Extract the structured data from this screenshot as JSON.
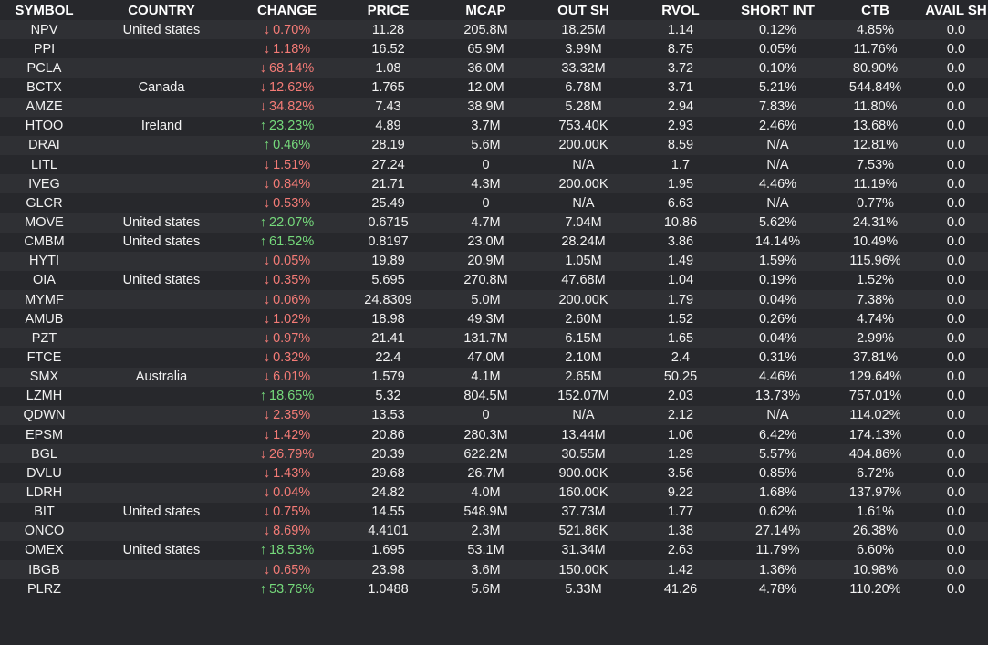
{
  "columns": [
    "SYMBOL",
    "COUNTRY",
    "CHANGE",
    "PRICE",
    "MCAP",
    "OUT SH",
    "RVOL",
    "SHORT INT",
    "CTB",
    "AVAIL SH"
  ],
  "colors": {
    "background": "#27282c",
    "row_alt": "#2f3034",
    "down": "#f47b76",
    "up": "#75d97b"
  },
  "icons": {
    "up": "arrow-up-icon",
    "down": "arrow-down-icon"
  },
  "rows": [
    {
      "symbol": "NPV",
      "country": "United states",
      "dir": "down",
      "arrow": "↓",
      "change": "0.70%",
      "price": "11.28",
      "mcap": "205.8M",
      "out_sh": "18.25M",
      "rvol": "1.14",
      "short_int": "0.12%",
      "ctb": "4.85%",
      "avail_sh": "0.0"
    },
    {
      "symbol": "PPI",
      "country": "",
      "dir": "down",
      "arrow": "↓",
      "change": "1.18%",
      "price": "16.52",
      "mcap": "65.9M",
      "out_sh": "3.99M",
      "rvol": "8.75",
      "short_int": "0.05%",
      "ctb": "11.76%",
      "avail_sh": "0.0"
    },
    {
      "symbol": "PCLA",
      "country": "",
      "dir": "down",
      "arrow": "↓",
      "change": "68.14%",
      "price": "1.08",
      "mcap": "36.0M",
      "out_sh": "33.32M",
      "rvol": "3.72",
      "short_int": "0.10%",
      "ctb": "80.90%",
      "avail_sh": "0.0"
    },
    {
      "symbol": "BCTX",
      "country": "Canada",
      "dir": "down",
      "arrow": "↓",
      "change": "12.62%",
      "price": "1.765",
      "mcap": "12.0M",
      "out_sh": "6.78M",
      "rvol": "3.71",
      "short_int": "5.21%",
      "ctb": "544.84%",
      "avail_sh": "0.0"
    },
    {
      "symbol": "AMZE",
      "country": "",
      "dir": "down",
      "arrow": "↓",
      "change": "34.82%",
      "price": "7.43",
      "mcap": "38.9M",
      "out_sh": "5.28M",
      "rvol": "2.94",
      "short_int": "7.83%",
      "ctb": "11.80%",
      "avail_sh": "0.0"
    },
    {
      "symbol": "HTOO",
      "country": "Ireland",
      "dir": "up",
      "arrow": "↑",
      "change": "23.23%",
      "price": "4.89",
      "mcap": "3.7M",
      "out_sh": "753.40K",
      "rvol": "2.93",
      "short_int": "2.46%",
      "ctb": "13.68%",
      "avail_sh": "0.0"
    },
    {
      "symbol": "DRAI",
      "country": "",
      "dir": "up",
      "arrow": "↑",
      "change": "0.46%",
      "price": "28.19",
      "mcap": "5.6M",
      "out_sh": "200.00K",
      "rvol": "8.59",
      "short_int": "N/A",
      "ctb": "12.81%",
      "avail_sh": "0.0"
    },
    {
      "symbol": "LITL",
      "country": "",
      "dir": "down",
      "arrow": "↓",
      "change": "1.51%",
      "price": "27.24",
      "mcap": "0",
      "out_sh": "N/A",
      "rvol": "1.7",
      "short_int": "N/A",
      "ctb": "7.53%",
      "avail_sh": "0.0"
    },
    {
      "symbol": "IVEG",
      "country": "",
      "dir": "down",
      "arrow": "↓",
      "change": "0.84%",
      "price": "21.71",
      "mcap": "4.3M",
      "out_sh": "200.00K",
      "rvol": "1.95",
      "short_int": "4.46%",
      "ctb": "11.19%",
      "avail_sh": "0.0"
    },
    {
      "symbol": "GLCR",
      "country": "",
      "dir": "down",
      "arrow": "↓",
      "change": "0.53%",
      "price": "25.49",
      "mcap": "0",
      "out_sh": "N/A",
      "rvol": "6.63",
      "short_int": "N/A",
      "ctb": "0.77%",
      "avail_sh": "0.0"
    },
    {
      "symbol": "MOVE",
      "country": "United states",
      "dir": "up",
      "arrow": "↑",
      "change": "22.07%",
      "price": "0.6715",
      "mcap": "4.7M",
      "out_sh": "7.04M",
      "rvol": "10.86",
      "short_int": "5.62%",
      "ctb": "24.31%",
      "avail_sh": "0.0"
    },
    {
      "symbol": "CMBM",
      "country": "United states",
      "dir": "up",
      "arrow": "↑",
      "change": "61.52%",
      "price": "0.8197",
      "mcap": "23.0M",
      "out_sh": "28.24M",
      "rvol": "3.86",
      "short_int": "14.14%",
      "ctb": "10.49%",
      "avail_sh": "0.0"
    },
    {
      "symbol": "HYTI",
      "country": "",
      "dir": "down",
      "arrow": "↓",
      "change": "0.05%",
      "price": "19.89",
      "mcap": "20.9M",
      "out_sh": "1.05M",
      "rvol": "1.49",
      "short_int": "1.59%",
      "ctb": "115.96%",
      "avail_sh": "0.0"
    },
    {
      "symbol": "OIA",
      "country": "United states",
      "dir": "down",
      "arrow": "↓",
      "change": "0.35%",
      "price": "5.695",
      "mcap": "270.8M",
      "out_sh": "47.68M",
      "rvol": "1.04",
      "short_int": "0.19%",
      "ctb": "1.52%",
      "avail_sh": "0.0"
    },
    {
      "symbol": "MYMF",
      "country": "",
      "dir": "down",
      "arrow": "↓",
      "change": "0.06%",
      "price": "24.8309",
      "mcap": "5.0M",
      "out_sh": "200.00K",
      "rvol": "1.79",
      "short_int": "0.04%",
      "ctb": "7.38%",
      "avail_sh": "0.0"
    },
    {
      "symbol": "AMUB",
      "country": "",
      "dir": "down",
      "arrow": "↓",
      "change": "1.02%",
      "price": "18.98",
      "mcap": "49.3M",
      "out_sh": "2.60M",
      "rvol": "1.52",
      "short_int": "0.26%",
      "ctb": "4.74%",
      "avail_sh": "0.0"
    },
    {
      "symbol": "PZT",
      "country": "",
      "dir": "down",
      "arrow": "↓",
      "change": "0.97%",
      "price": "21.41",
      "mcap": "131.7M",
      "out_sh": "6.15M",
      "rvol": "1.65",
      "short_int": "0.04%",
      "ctb": "2.99%",
      "avail_sh": "0.0"
    },
    {
      "symbol": "FTCE",
      "country": "",
      "dir": "down",
      "arrow": "↓",
      "change": "0.32%",
      "price": "22.4",
      "mcap": "47.0M",
      "out_sh": "2.10M",
      "rvol": "2.4",
      "short_int": "0.31%",
      "ctb": "37.81%",
      "avail_sh": "0.0"
    },
    {
      "symbol": "SMX",
      "country": "Australia",
      "dir": "down",
      "arrow": "↓",
      "change": "6.01%",
      "price": "1.579",
      "mcap": "4.1M",
      "out_sh": "2.65M",
      "rvol": "50.25",
      "short_int": "4.46%",
      "ctb": "129.64%",
      "avail_sh": "0.0"
    },
    {
      "symbol": "LZMH",
      "country": "",
      "dir": "up",
      "arrow": "↑",
      "change": "18.65%",
      "price": "5.32",
      "mcap": "804.5M",
      "out_sh": "152.07M",
      "rvol": "2.03",
      "short_int": "13.73%",
      "ctb": "757.01%",
      "avail_sh": "0.0"
    },
    {
      "symbol": "QDWN",
      "country": "",
      "dir": "down",
      "arrow": "↓",
      "change": "2.35%",
      "price": "13.53",
      "mcap": "0",
      "out_sh": "N/A",
      "rvol": "2.12",
      "short_int": "N/A",
      "ctb": "114.02%",
      "avail_sh": "0.0"
    },
    {
      "symbol": "EPSM",
      "country": "",
      "dir": "down",
      "arrow": "↓",
      "change": "1.42%",
      "price": "20.86",
      "mcap": "280.3M",
      "out_sh": "13.44M",
      "rvol": "1.06",
      "short_int": "6.42%",
      "ctb": "174.13%",
      "avail_sh": "0.0"
    },
    {
      "symbol": "BGL",
      "country": "",
      "dir": "down",
      "arrow": "↓",
      "change": "26.79%",
      "price": "20.39",
      "mcap": "622.2M",
      "out_sh": "30.55M",
      "rvol": "1.29",
      "short_int": "5.57%",
      "ctb": "404.86%",
      "avail_sh": "0.0"
    },
    {
      "symbol": "DVLU",
      "country": "",
      "dir": "down",
      "arrow": "↓",
      "change": "1.43%",
      "price": "29.68",
      "mcap": "26.7M",
      "out_sh": "900.00K",
      "rvol": "3.56",
      "short_int": "0.85%",
      "ctb": "6.72%",
      "avail_sh": "0.0"
    },
    {
      "symbol": "LDRH",
      "country": "",
      "dir": "down",
      "arrow": "↓",
      "change": "0.04%",
      "price": "24.82",
      "mcap": "4.0M",
      "out_sh": "160.00K",
      "rvol": "9.22",
      "short_int": "1.68%",
      "ctb": "137.97%",
      "avail_sh": "0.0"
    },
    {
      "symbol": "BIT",
      "country": "United states",
      "dir": "down",
      "arrow": "↓",
      "change": "0.75%",
      "price": "14.55",
      "mcap": "548.9M",
      "out_sh": "37.73M",
      "rvol": "1.77",
      "short_int": "0.62%",
      "ctb": "1.61%",
      "avail_sh": "0.0"
    },
    {
      "symbol": "ONCO",
      "country": "",
      "dir": "down",
      "arrow": "↓",
      "change": "8.69%",
      "price": "4.4101",
      "mcap": "2.3M",
      "out_sh": "521.86K",
      "rvol": "1.38",
      "short_int": "27.14%",
      "ctb": "26.38%",
      "avail_sh": "0.0"
    },
    {
      "symbol": "OMEX",
      "country": "United states",
      "dir": "up",
      "arrow": "↑",
      "change": "18.53%",
      "price": "1.695",
      "mcap": "53.1M",
      "out_sh": "31.34M",
      "rvol": "2.63",
      "short_int": "11.79%",
      "ctb": "6.60%",
      "avail_sh": "0.0"
    },
    {
      "symbol": "IBGB",
      "country": "",
      "dir": "down",
      "arrow": "↓",
      "change": "0.65%",
      "price": "23.98",
      "mcap": "3.6M",
      "out_sh": "150.00K",
      "rvol": "1.42",
      "short_int": "1.36%",
      "ctb": "10.98%",
      "avail_sh": "0.0"
    },
    {
      "symbol": "PLRZ",
      "country": "",
      "dir": "up",
      "arrow": "↑",
      "change": "53.76%",
      "price": "1.0488",
      "mcap": "5.6M",
      "out_sh": "5.33M",
      "rvol": "41.26",
      "short_int": "4.78%",
      "ctb": "110.20%",
      "avail_sh": "0.0"
    }
  ]
}
